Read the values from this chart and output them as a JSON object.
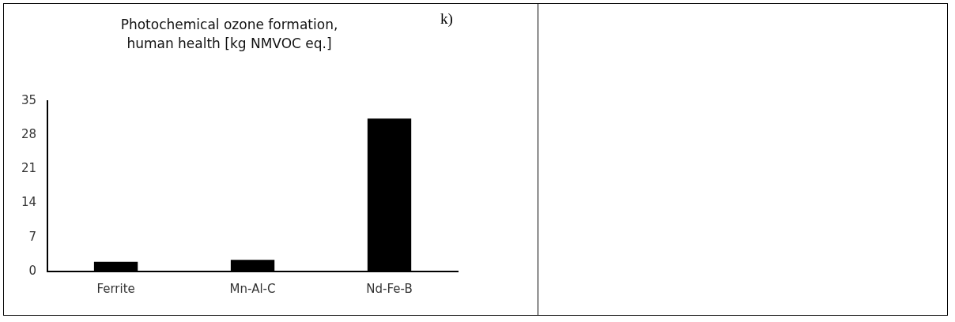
{
  "chart_data": {
    "type": "bar",
    "title": "Photochemical ozone formation, human health [kg NMVOC eq.]",
    "annotations": [
      "k)"
    ],
    "categories": [
      "Ferrite",
      "Mn-Al-C",
      "Nd-Fe-B"
    ],
    "values": [
      2.0,
      2.4,
      31.4
    ],
    "color": "#000000",
    "ylim": [
      0,
      35
    ],
    "yticks": [
      0,
      7,
      14,
      21,
      28,
      35
    ],
    "grid": false,
    "legend": false
  }
}
